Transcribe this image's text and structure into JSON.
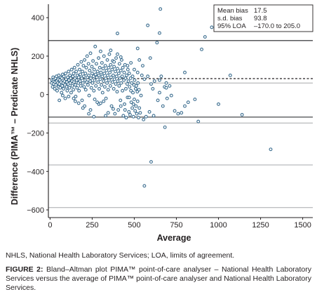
{
  "chart_data": {
    "type": "scatter",
    "xlabel": "Average",
    "ylabel": "Difference (PIMA™ – Predicate NHLS)",
    "xlim": [
      -10,
      1560
    ],
    "ylim": [
      -640,
      470
    ],
    "xticks": [
      0,
      250,
      500,
      750,
      1000,
      1250,
      1500
    ],
    "yticks": [
      -600,
      -400,
      -200,
      0,
      200,
      400
    ],
    "legend_placement": "top-right",
    "stats": [
      {
        "label": "Mean bias",
        "value": "17.5"
      },
      {
        "label": "s.d. bias",
        "value": "93.8"
      },
      {
        "label": "95% LOA",
        "value": "–170.0 to 205.0"
      }
    ],
    "reference_lines": {
      "solid_dark": [
        281,
        -117
      ],
      "solid_light": [
        60,
        -148,
        -366,
        -588
      ],
      "dashed": [
        83
      ]
    },
    "points": [
      [
        10,
        60
      ],
      [
        12,
        75
      ],
      [
        15,
        40
      ],
      [
        18,
        90
      ],
      [
        20,
        70
      ],
      [
        22,
        55
      ],
      [
        25,
        80
      ],
      [
        28,
        30
      ],
      [
        30,
        65
      ],
      [
        32,
        85
      ],
      [
        35,
        50
      ],
      [
        38,
        95
      ],
      [
        40,
        70
      ],
      [
        42,
        20
      ],
      [
        45,
        60
      ],
      [
        48,
        80
      ],
      [
        50,
        40
      ],
      [
        52,
        100
      ],
      [
        55,
        55
      ],
      [
        58,
        75
      ],
      [
        60,
        35
      ],
      [
        62,
        90
      ],
      [
        65,
        65
      ],
      [
        68,
        10
      ],
      [
        70,
        85
      ],
      [
        72,
        45
      ],
      [
        75,
        105
      ],
      [
        78,
        60
      ],
      [
        80,
        30
      ],
      [
        82,
        95
      ],
      [
        85,
        70
      ],
      [
        88,
        50
      ],
      [
        90,
        -20
      ],
      [
        92,
        110
      ],
      [
        95,
        80
      ],
      [
        98,
        40
      ],
      [
        100,
        65
      ],
      [
        102,
        20
      ],
      [
        105,
        90
      ],
      [
        108,
        55
      ],
      [
        110,
        120
      ],
      [
        112,
        75
      ],
      [
        115,
        35
      ],
      [
        118,
        100
      ],
      [
        120,
        60
      ],
      [
        122,
        85
      ],
      [
        125,
        10
      ],
      [
        128,
        130
      ],
      [
        130,
        70
      ],
      [
        132,
        45
      ],
      [
        135,
        95
      ],
      [
        138,
        25
      ],
      [
        140,
        110
      ],
      [
        142,
        65
      ],
      [
        145,
        140
      ],
      [
        148,
        85
      ],
      [
        150,
        50
      ],
      [
        152,
        -10
      ],
      [
        155,
        120
      ],
      [
        158,
        75
      ],
      [
        160,
        35
      ],
      [
        162,
        100
      ],
      [
        165,
        155
      ],
      [
        168,
        60
      ],
      [
        170,
        90
      ],
      [
        172,
        20
      ],
      [
        175,
        130
      ],
      [
        178,
        70
      ],
      [
        180,
        105
      ],
      [
        182,
        45
      ],
      [
        185,
        170
      ],
      [
        188,
        85
      ],
      [
        190,
        -30
      ],
      [
        192,
        120
      ],
      [
        195,
        60
      ],
      [
        198,
        150
      ],
      [
        200,
        95
      ],
      [
        202,
        40
      ],
      [
        205,
        180
      ],
      [
        208,
        75
      ],
      [
        210,
        110
      ],
      [
        212,
        25
      ],
      [
        215,
        140
      ],
      [
        218,
        65
      ],
      [
        220,
        200
      ],
      [
        222,
        90
      ],
      [
        225,
        50
      ],
      [
        228,
        160
      ],
      [
        230,
        100
      ],
      [
        232,
        -5
      ],
      [
        235,
        125
      ],
      [
        238,
        70
      ],
      [
        240,
        215
      ],
      [
        242,
        85
      ],
      [
        245,
        35
      ],
      [
        248,
        145
      ],
      [
        250,
        110
      ],
      [
        252,
        60
      ],
      [
        255,
        175
      ],
      [
        258,
        95
      ],
      [
        260,
        20
      ],
      [
        262,
        130
      ],
      [
        265,
        75
      ],
      [
        268,
        250
      ],
      [
        270,
        105
      ],
      [
        272,
        45
      ],
      [
        275,
        160
      ],
      [
        278,
        90
      ],
      [
        280,
        -40
      ],
      [
        282,
        120
      ],
      [
        285,
        65
      ],
      [
        288,
        190
      ],
      [
        290,
        100
      ],
      [
        292,
        30
      ],
      [
        295,
        140
      ],
      [
        298,
        80
      ],
      [
        300,
        225
      ],
      [
        302,
        115
      ],
      [
        305,
        50
      ],
      [
        308,
        165
      ],
      [
        310,
        95
      ],
      [
        312,
        10
      ],
      [
        315,
        135
      ],
      [
        318,
        70
      ],
      [
        320,
        200
      ],
      [
        322,
        110
      ],
      [
        325,
        40
      ],
      [
        328,
        150
      ],
      [
        330,
        85
      ],
      [
        332,
        -20
      ],
      [
        335,
        125
      ],
      [
        338,
        60
      ],
      [
        340,
        180
      ],
      [
        342,
        100
      ],
      [
        345,
        25
      ],
      [
        348,
        140
      ],
      [
        350,
        75
      ],
      [
        352,
        210
      ],
      [
        355,
        115
      ],
      [
        358,
        45
      ],
      [
        360,
        155
      ],
      [
        362,
        90
      ],
      [
        365,
        -60
      ],
      [
        368,
        130
      ],
      [
        370,
        65
      ],
      [
        372,
        175
      ],
      [
        375,
        100
      ],
      [
        378,
        30
      ],
      [
        380,
        145
      ],
      [
        382,
        80
      ],
      [
        385,
        -100
      ],
      [
        388,
        120
      ],
      [
        390,
        55
      ],
      [
        392,
        190
      ],
      [
        395,
        95
      ],
      [
        398,
        15
      ],
      [
        400,
        135
      ],
      [
        402,
        70
      ],
      [
        405,
        -80
      ],
      [
        408,
        110
      ],
      [
        410,
        45
      ],
      [
        412,
        160
      ],
      [
        415,
        85
      ],
      [
        418,
        -30
      ],
      [
        420,
        125
      ],
      [
        422,
        60
      ],
      [
        425,
        180
      ],
      [
        428,
        95
      ],
      [
        430,
        20
      ],
      [
        432,
        140
      ],
      [
        435,
        -110
      ],
      [
        438,
        75
      ],
      [
        440,
        115
      ],
      [
        442,
        -50
      ],
      [
        445,
        155
      ],
      [
        448,
        85
      ],
      [
        450,
        30
      ],
      [
        452,
        -120
      ],
      [
        455,
        100
      ],
      [
        458,
        55
      ],
      [
        460,
        -15
      ],
      [
        462,
        130
      ],
      [
        465,
        70
      ],
      [
        468,
        -90
      ],
      [
        470,
        110
      ],
      [
        472,
        40
      ],
      [
        475,
        -105
      ],
      [
        478,
        85
      ],
      [
        480,
        20
      ],
      [
        482,
        -40
      ],
      [
        485,
        60
      ],
      [
        488,
        -70
      ],
      [
        490,
        95
      ],
      [
        492,
        10
      ],
      [
        495,
        -115
      ],
      [
        498,
        50
      ],
      [
        500,
        -25
      ],
      [
        502,
        75
      ],
      [
        505,
        -85
      ],
      [
        508,
        30
      ],
      [
        510,
        -60
      ],
      [
        512,
        45
      ],
      [
        515,
        -100
      ],
      [
        518,
        15
      ],
      [
        520,
        -35
      ],
      [
        522,
        60
      ],
      [
        525,
        -120
      ],
      [
        528,
        25
      ],
      [
        530,
        -70
      ],
      [
        540,
        -5
      ],
      [
        55,
        -30
      ],
      [
        140,
        -20
      ],
      [
        170,
        -45
      ],
      [
        205,
        -60
      ],
      [
        240,
        -80
      ],
      [
        265,
        -25
      ],
      [
        290,
        -50
      ],
      [
        318,
        -35
      ],
      [
        345,
        -95
      ],
      [
        375,
        -75
      ],
      [
        110,
        -10
      ],
      [
        75,
        -5
      ],
      [
        420,
        -60
      ],
      [
        445,
        -80
      ],
      [
        260,
        -115
      ],
      [
        330,
        -110
      ],
      [
        300,
        -45
      ],
      [
        230,
        -100
      ],
      [
        195,
        -70
      ],
      [
        150,
        -35
      ],
      [
        360,
        230
      ],
      [
        380,
        170
      ],
      [
        400,
        210
      ],
      [
        420,
        195
      ],
      [
        460,
        150
      ],
      [
        480,
        165
      ],
      [
        500,
        130
      ],
      [
        520,
        115
      ],
      [
        545,
        100
      ],
      [
        560,
        80
      ],
      [
        580,
        95
      ],
      [
        600,
        55
      ],
      [
        610,
        30
      ],
      [
        620,
        70
      ],
      [
        640,
        -30
      ],
      [
        650,
        10
      ],
      [
        660,
        95
      ],
      [
        670,
        -60
      ],
      [
        680,
        40
      ],
      [
        695,
        -20
      ],
      [
        710,
        45
      ],
      [
        720,
        -5
      ],
      [
        740,
        -85
      ],
      [
        780,
        -95
      ],
      [
        800,
        -60
      ],
      [
        820,
        -40
      ],
      [
        860,
        -25
      ],
      [
        880,
        -140
      ],
      [
        400,
        318
      ],
      [
        635,
        270
      ],
      [
        595,
        190
      ],
      [
        550,
        150
      ],
      [
        530,
        180
      ],
      [
        655,
        445
      ],
      [
        580,
        360
      ],
      [
        520,
        240
      ],
      [
        650,
        320
      ],
      [
        650,
        75
      ],
      [
        682,
        -170
      ],
      [
        690,
        60
      ],
      [
        800,
        115
      ],
      [
        900,
        235
      ],
      [
        920,
        300
      ],
      [
        960,
        350
      ],
      [
        1000,
        -50
      ],
      [
        1070,
        100
      ],
      [
        1140,
        -105
      ],
      [
        1310,
        -285
      ],
      [
        600,
        -350
      ],
      [
        560,
        -475
      ],
      [
        470,
        -15
      ],
      [
        495,
        -50
      ],
      [
        535,
        -95
      ],
      [
        555,
        -130
      ],
      [
        570,
        -115
      ],
      [
        760,
        -100
      ],
      [
        690,
        35
      ],
      [
        590,
        -90
      ],
      [
        615,
        -110
      ]
    ]
  },
  "footnote": "NHLS, National Health Laboratory Services; LOA, limits of agreement.",
  "caption": {
    "label": "FIGURE 2:",
    "text": " Bland–Altman plot PIMA™ point-of-care analyser – National Health Laboratory Services versus the average of PIMA™ point-of-care analyser and National Health Laboratory Services."
  }
}
